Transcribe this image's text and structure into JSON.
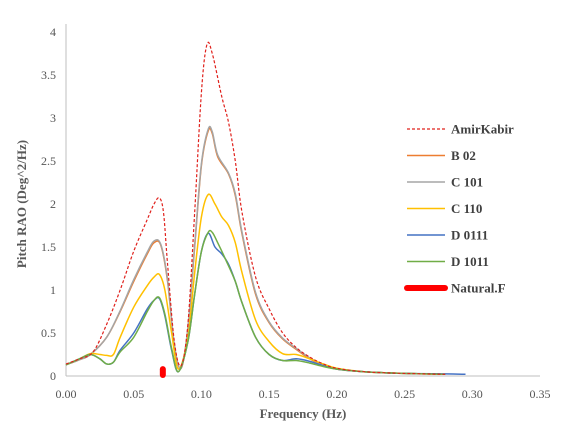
{
  "chart_data": {
    "type": "line",
    "title": "",
    "xlabel": "Frequency (Hz)",
    "ylabel": "Pitch RAO (Deg^2/Hz)",
    "xlim": [
      0,
      0.35
    ],
    "ylim": [
      0,
      4
    ],
    "xticks": [
      "0.00",
      "0.05",
      "0.10",
      "0.15",
      "0.20",
      "0.25",
      "0.30",
      "0.35"
    ],
    "yticks": [
      "0",
      "0.5",
      "1",
      "1.5",
      "2",
      "2.5",
      "3",
      "3.5",
      "4"
    ],
    "grid": false,
    "legend_position": "right",
    "series": [
      {
        "name": "AmirKabir",
        "color": "#e0201b",
        "style": "dashed",
        "points": [
          [
            0.0,
            0.14
          ],
          [
            0.01,
            0.2
          ],
          [
            0.02,
            0.28
          ],
          [
            0.03,
            0.6
          ],
          [
            0.04,
            1.0
          ],
          [
            0.05,
            1.45
          ],
          [
            0.06,
            1.82
          ],
          [
            0.065,
            2.0
          ],
          [
            0.069,
            2.07
          ],
          [
            0.072,
            1.9
          ],
          [
            0.075,
            1.3
          ],
          [
            0.08,
            0.4
          ],
          [
            0.085,
            0.12
          ],
          [
            0.09,
            0.6
          ],
          [
            0.095,
            1.9
          ],
          [
            0.1,
            3.3
          ],
          [
            0.104,
            3.85
          ],
          [
            0.108,
            3.75
          ],
          [
            0.115,
            3.25
          ],
          [
            0.12,
            2.95
          ],
          [
            0.125,
            2.5
          ],
          [
            0.13,
            1.9
          ],
          [
            0.14,
            1.15
          ],
          [
            0.15,
            0.78
          ],
          [
            0.16,
            0.5
          ],
          [
            0.17,
            0.33
          ],
          [
            0.18,
            0.22
          ],
          [
            0.19,
            0.14
          ],
          [
            0.2,
            0.09
          ],
          [
            0.22,
            0.05
          ],
          [
            0.25,
            0.03
          ],
          [
            0.28,
            0.02
          ]
        ]
      },
      {
        "name": "B 02",
        "color": "#ed7d31",
        "style": "solid",
        "points": [
          [
            0.0,
            0.13
          ],
          [
            0.01,
            0.19
          ],
          [
            0.018,
            0.25
          ],
          [
            0.03,
            0.45
          ],
          [
            0.04,
            0.75
          ],
          [
            0.05,
            1.1
          ],
          [
            0.06,
            1.42
          ],
          [
            0.065,
            1.55
          ],
          [
            0.07,
            1.52
          ],
          [
            0.075,
            1.1
          ],
          [
            0.08,
            0.35
          ],
          [
            0.085,
            0.09
          ],
          [
            0.09,
            0.55
          ],
          [
            0.095,
            1.5
          ],
          [
            0.1,
            2.45
          ],
          [
            0.105,
            2.85
          ],
          [
            0.108,
            2.82
          ],
          [
            0.112,
            2.55
          ],
          [
            0.12,
            2.35
          ],
          [
            0.125,
            2.1
          ],
          [
            0.13,
            1.65
          ],
          [
            0.14,
            0.95
          ],
          [
            0.15,
            0.62
          ],
          [
            0.16,
            0.43
          ],
          [
            0.17,
            0.31
          ],
          [
            0.18,
            0.2
          ],
          [
            0.19,
            0.13
          ],
          [
            0.2,
            0.08
          ],
          [
            0.22,
            0.05
          ],
          [
            0.25,
            0.03
          ],
          [
            0.28,
            0.02
          ]
        ]
      },
      {
        "name": "C 101",
        "color": "#a5a5a5",
        "style": "solid",
        "points": [
          [
            0.0,
            0.13
          ],
          [
            0.01,
            0.19
          ],
          [
            0.018,
            0.25
          ],
          [
            0.03,
            0.45
          ],
          [
            0.04,
            0.76
          ],
          [
            0.05,
            1.12
          ],
          [
            0.06,
            1.44
          ],
          [
            0.065,
            1.57
          ],
          [
            0.07,
            1.53
          ],
          [
            0.075,
            1.12
          ],
          [
            0.08,
            0.36
          ],
          [
            0.085,
            0.09
          ],
          [
            0.09,
            0.56
          ],
          [
            0.095,
            1.52
          ],
          [
            0.1,
            2.47
          ],
          [
            0.105,
            2.87
          ],
          [
            0.108,
            2.84
          ],
          [
            0.112,
            2.57
          ],
          [
            0.12,
            2.36
          ],
          [
            0.125,
            2.12
          ],
          [
            0.13,
            1.67
          ],
          [
            0.14,
            0.97
          ],
          [
            0.15,
            0.63
          ],
          [
            0.16,
            0.44
          ],
          [
            0.17,
            0.32
          ],
          [
            0.18,
            0.21
          ],
          [
            0.19,
            0.13
          ],
          [
            0.2,
            0.08
          ],
          [
            0.22,
            0.05
          ],
          [
            0.25,
            0.03
          ],
          [
            0.28,
            0.02
          ]
        ]
      },
      {
        "name": "C 110",
        "color": "#ffc000",
        "style": "solid",
        "points": [
          [
            0.0,
            0.13
          ],
          [
            0.01,
            0.2
          ],
          [
            0.018,
            0.26
          ],
          [
            0.025,
            0.25
          ],
          [
            0.03,
            0.24
          ],
          [
            0.035,
            0.25
          ],
          [
            0.04,
            0.45
          ],
          [
            0.05,
            0.8
          ],
          [
            0.06,
            1.05
          ],
          [
            0.065,
            1.15
          ],
          [
            0.069,
            1.18
          ],
          [
            0.073,
            1.0
          ],
          [
            0.078,
            0.5
          ],
          [
            0.083,
            0.08
          ],
          [
            0.09,
            0.45
          ],
          [
            0.095,
            1.2
          ],
          [
            0.1,
            1.85
          ],
          [
            0.105,
            2.11
          ],
          [
            0.11,
            2.0
          ],
          [
            0.115,
            1.85
          ],
          [
            0.12,
            1.75
          ],
          [
            0.125,
            1.55
          ],
          [
            0.13,
            1.2
          ],
          [
            0.14,
            0.65
          ],
          [
            0.15,
            0.4
          ],
          [
            0.16,
            0.26
          ],
          [
            0.17,
            0.25
          ],
          [
            0.18,
            0.2
          ],
          [
            0.19,
            0.14
          ],
          [
            0.2,
            0.09
          ],
          [
            0.22,
            0.05
          ],
          [
            0.25,
            0.03
          ],
          [
            0.28,
            0.02
          ]
        ]
      },
      {
        "name": "D 0111",
        "color": "#4472c4",
        "style": "solid",
        "points": [
          [
            0.0,
            0.13
          ],
          [
            0.01,
            0.2
          ],
          [
            0.018,
            0.25
          ],
          [
            0.025,
            0.2
          ],
          [
            0.03,
            0.14
          ],
          [
            0.035,
            0.16
          ],
          [
            0.04,
            0.3
          ],
          [
            0.05,
            0.5
          ],
          [
            0.06,
            0.78
          ],
          [
            0.065,
            0.88
          ],
          [
            0.069,
            0.9
          ],
          [
            0.073,
            0.7
          ],
          [
            0.078,
            0.3
          ],
          [
            0.083,
            0.05
          ],
          [
            0.09,
            0.4
          ],
          [
            0.095,
            0.95
          ],
          [
            0.1,
            1.45
          ],
          [
            0.105,
            1.66
          ],
          [
            0.11,
            1.5
          ],
          [
            0.115,
            1.42
          ],
          [
            0.12,
            1.3
          ],
          [
            0.125,
            1.1
          ],
          [
            0.13,
            0.85
          ],
          [
            0.14,
            0.45
          ],
          [
            0.15,
            0.25
          ],
          [
            0.16,
            0.18
          ],
          [
            0.17,
            0.2
          ],
          [
            0.18,
            0.17
          ],
          [
            0.19,
            0.12
          ],
          [
            0.2,
            0.08
          ],
          [
            0.22,
            0.05
          ],
          [
            0.25,
            0.03
          ],
          [
            0.28,
            0.025
          ],
          [
            0.295,
            0.02
          ]
        ]
      },
      {
        "name": "D 1011",
        "color": "#70ad47",
        "style": "solid",
        "points": [
          [
            0.0,
            0.13
          ],
          [
            0.01,
            0.2
          ],
          [
            0.018,
            0.25
          ],
          [
            0.025,
            0.2
          ],
          [
            0.03,
            0.14
          ],
          [
            0.035,
            0.16
          ],
          [
            0.04,
            0.28
          ],
          [
            0.05,
            0.45
          ],
          [
            0.06,
            0.75
          ],
          [
            0.065,
            0.88
          ],
          [
            0.069,
            0.91
          ],
          [
            0.073,
            0.72
          ],
          [
            0.078,
            0.32
          ],
          [
            0.083,
            0.05
          ],
          [
            0.09,
            0.4
          ],
          [
            0.095,
            0.95
          ],
          [
            0.1,
            1.45
          ],
          [
            0.105,
            1.67
          ],
          [
            0.108,
            1.67
          ],
          [
            0.112,
            1.55
          ],
          [
            0.118,
            1.35
          ],
          [
            0.125,
            1.1
          ],
          [
            0.13,
            0.85
          ],
          [
            0.14,
            0.45
          ],
          [
            0.15,
            0.25
          ],
          [
            0.16,
            0.18
          ],
          [
            0.17,
            0.18
          ],
          [
            0.18,
            0.15
          ],
          [
            0.19,
            0.11
          ],
          [
            0.2,
            0.08
          ],
          [
            0.22,
            0.05
          ],
          [
            0.25,
            0.03
          ],
          [
            0.28,
            0.02
          ]
        ]
      },
      {
        "name": "Natural.F",
        "color": "#ff0000",
        "style": "thick",
        "points": [
          [
            0.0715,
            0.0
          ],
          [
            0.0715,
            0.08
          ]
        ]
      }
    ]
  }
}
